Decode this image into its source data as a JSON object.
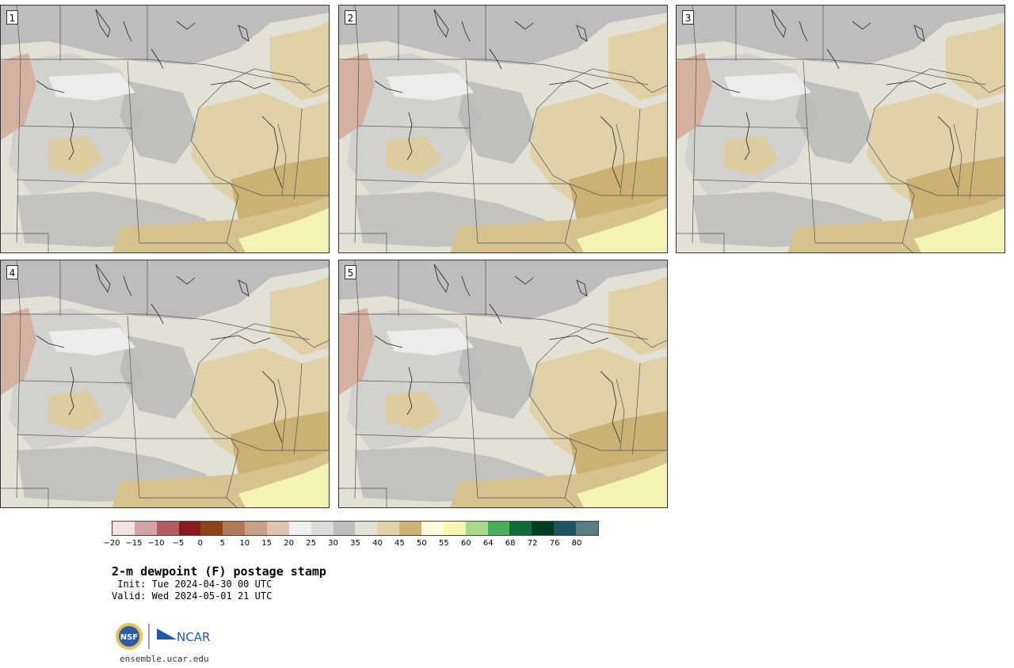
{
  "panels": [
    {
      "label": "1"
    },
    {
      "label": "2"
    },
    {
      "label": "3"
    },
    {
      "label": "4"
    },
    {
      "label": "5"
    }
  ],
  "colorbar": {
    "ticks": [
      "−20",
      "−15",
      "−10",
      "−5",
      "0",
      "5",
      "10",
      "15",
      "20",
      "25",
      "30",
      "35",
      "40",
      "45",
      "50",
      "55",
      "60",
      "64",
      "68",
      "72",
      "76",
      "80"
    ],
    "colors": [
      "#f2e3e3",
      "#d4a3a5",
      "#b45c63",
      "#8b1a1f",
      "#8b4513",
      "#b07a58",
      "#c9a087",
      "#e0c4b2",
      "#f0f0f0",
      "#dcdcdc",
      "#bdbdbd",
      "#e3e2d2",
      "#e2d3a9",
      "#cdb274",
      "#fffbdc",
      "#f7f7b2",
      "#a9d98a",
      "#47ad5a",
      "#0c6d38",
      "#003d22",
      "#1f5561",
      "#577d80"
    ]
  },
  "title": "2-m dewpoint (F) postage stamp",
  "init_line": " Init: Tue 2024-04-30 00 UTC",
  "valid_line": "Valid: Wed 2024-05-01 21 UTC",
  "logos": {
    "nsf": "NSF",
    "ncar": "NCAR"
  },
  "url": "ensemble.ucar.edu"
}
